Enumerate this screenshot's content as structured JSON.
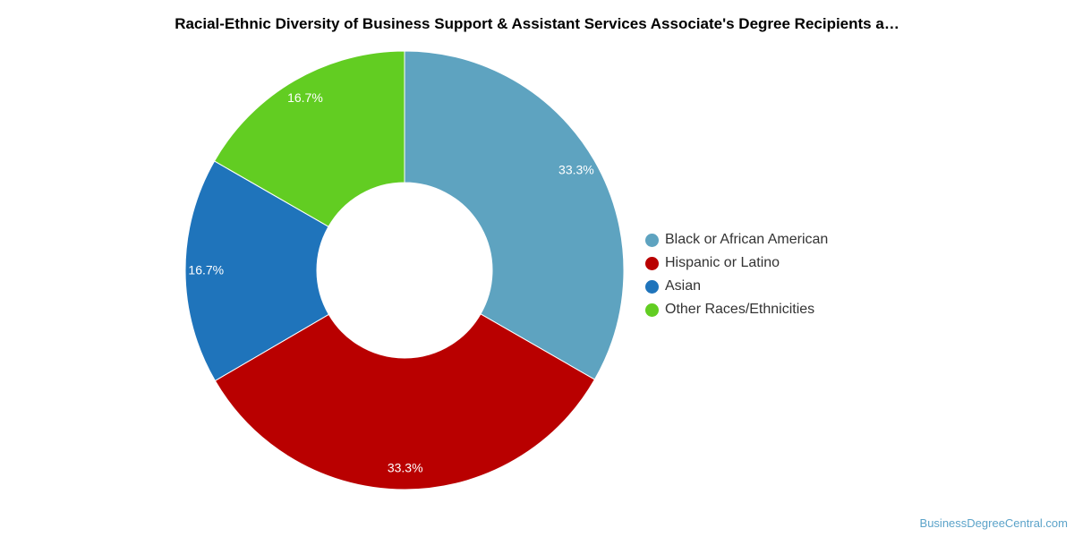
{
  "title": "Racial-Ethnic Diversity of Business Support & Assistant Services Associate's Degree Recipients a…",
  "chart_data": {
    "type": "pie",
    "donut": true,
    "title": "Racial-Ethnic Diversity of Business Support & Assistant Services Associate's Degree Recipients a…",
    "legend_position": "right",
    "slices": [
      {
        "name": "Black or African American",
        "value": 33.3,
        "label": "33.3%",
        "color": "#5ea3c0"
      },
      {
        "name": "Hispanic or Latino",
        "value": 33.3,
        "label": "33.3%",
        "color": "#b90000"
      },
      {
        "name": "Asian",
        "value": 16.7,
        "label": "16.7%",
        "color": "#1f74bb"
      },
      {
        "name": "Other Races/Ethnicities",
        "value": 16.7,
        "label": "16.7%",
        "color": "#62cd22"
      }
    ]
  },
  "legend": {
    "items": [
      {
        "label": "Black or African American",
        "color": "#5ea3c0"
      },
      {
        "label": "Hispanic or Latino",
        "color": "#b90000"
      },
      {
        "label": "Asian",
        "color": "#1f74bb"
      },
      {
        "label": "Other Races/Ethnicities",
        "color": "#62cd22"
      }
    ]
  },
  "source": "BusinessDegreeCentral.com"
}
